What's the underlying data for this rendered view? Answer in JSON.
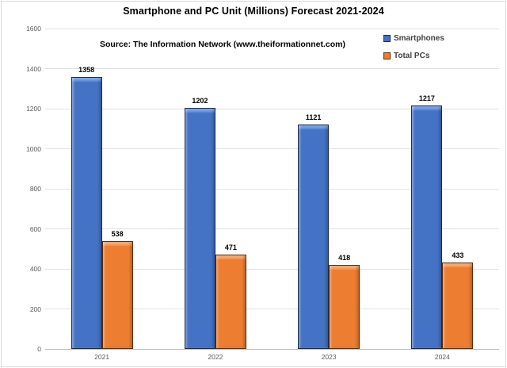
{
  "title": "Smartphone and PC Unit (Millions) Forecast 2021-2024",
  "source_note": "Source: The Information Network (www.theiformationnet.com)",
  "colors": {
    "smartphones_fill": "#4472c4",
    "smartphones_highlight": "#7ea7ea",
    "smartphones_border": "#1c2b45",
    "total_pcs_fill": "#ed7d31",
    "total_pcs_highlight": "#f8b07c",
    "total_pcs_border": "#5b2d0a",
    "gridline": "#e2e2e2",
    "axis_line": "#bfbfbf",
    "tick_text": "#595959"
  },
  "chart_data": {
    "type": "bar",
    "title": "Smartphone and PC Unit (Millions) Forecast 2021-2024",
    "categories": [
      "2021",
      "2022",
      "2023",
      "2024"
    ],
    "series": [
      {
        "name": "Smartphones",
        "values": [
          1358,
          1202,
          1121,
          1217
        ],
        "color": "#4472c4",
        "highlight": "#7ea7ea",
        "border": "#1c2b45"
      },
      {
        "name": "Total PCs",
        "values": [
          538,
          471,
          418,
          433
        ],
        "color": "#ed7d31",
        "highlight": "#f8b07c",
        "border": "#5b2d0a"
      }
    ],
    "xlabel": "",
    "ylabel": "",
    "ylim": [
      0,
      1600
    ],
    "yticks": [
      0,
      200,
      400,
      600,
      800,
      1000,
      1200,
      1400,
      1600
    ],
    "grid": true,
    "legend_position": "top-right",
    "data_labels": true
  }
}
